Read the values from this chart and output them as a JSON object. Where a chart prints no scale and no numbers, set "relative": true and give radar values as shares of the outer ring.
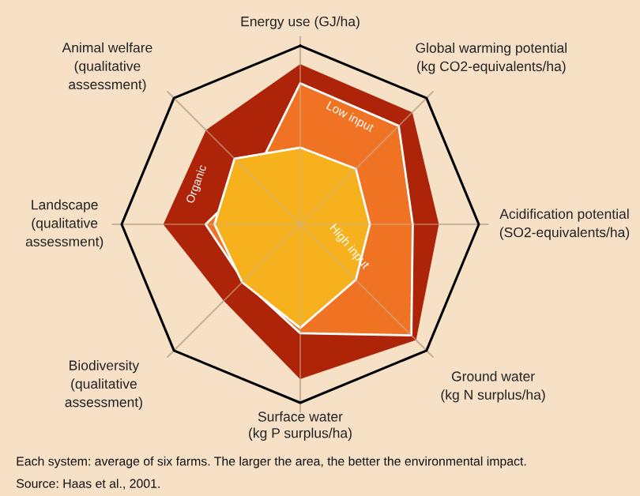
{
  "chart_data": {
    "type": "radar",
    "relative": true,
    "legend": false,
    "categories": [
      "Energy use (GJ/ha)",
      "Global warming potential\n(kg CO2-equivalents/ha)",
      "Acidification potential\n(SO2-equivalents/ha)",
      "Ground water\n(kg N surplus/ha)",
      "Surface water\n(kg P surplus/ha)",
      "Biodiversity\n(qualitative\nassessment)",
      "Landscape\n(qualitative\nassessment)",
      "Animal welfare\n(qualitative\nassessment)"
    ],
    "series": [
      {
        "name": "Organic",
        "color": "#ad2409",
        "values": [
          0.89,
          0.88,
          0.77,
          0.91,
          0.86,
          0.6,
          0.76,
          0.74
        ]
      },
      {
        "name": "Low input",
        "color": "#f07223",
        "values": [
          0.79,
          0.78,
          0.63,
          0.88,
          0.61,
          0.45,
          0.53,
          0.37
        ]
      },
      {
        "name": "High input",
        "color": "#f6b11c",
        "values": [
          0.43,
          0.44,
          0.39,
          0.44,
          0.58,
          0.46,
          0.48,
          0.52
        ]
      }
    ],
    "annotations": [
      "Each system: average of six farms. The larger the area, the better the environmental impact.",
      "Source: Haas et al., 2001."
    ]
  }
}
